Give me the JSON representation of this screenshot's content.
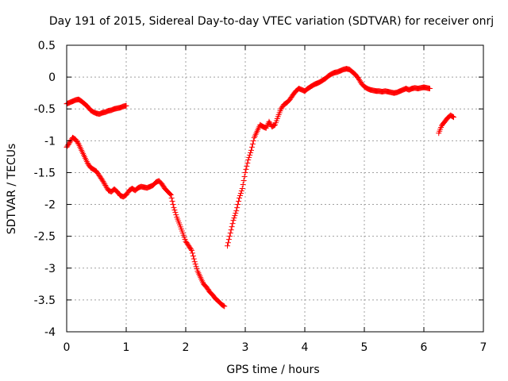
{
  "chart_data": {
    "type": "scatter",
    "title": "Day 191 of 2015, Sidereal Day-to-day VTEC variation (SDTVAR) for receiver onrj",
    "xlabel": "GPS time / hours",
    "ylabel": "SDTVAR / TECUs",
    "xlim": [
      0,
      7
    ],
    "ylim": [
      -4,
      0.5
    ],
    "xticks": [
      "0",
      "1",
      "2",
      "3",
      "4",
      "5",
      "6",
      "7"
    ],
    "yticks": [
      "0.5",
      "0",
      "-0.5",
      "-1",
      "-1.5",
      "-2",
      "-2.5",
      "-3",
      "-3.5",
      "-4"
    ],
    "grid": true,
    "marker": "+",
    "color": "#ff0000",
    "series": [
      {
        "x": [
          0.0,
          0.05,
          0.1,
          0.15,
          0.2,
          0.25,
          0.3,
          0.35,
          0.4,
          0.45,
          0.5,
          0.55,
          0.6,
          0.65,
          0.7,
          0.75,
          0.8,
          0.85,
          0.9,
          0.95,
          1.0
        ],
        "y": [
          -0.42,
          -0.4,
          -0.38,
          -0.36,
          -0.35,
          -0.38,
          -0.42,
          -0.46,
          -0.52,
          -0.55,
          -0.57,
          -0.58,
          -0.56,
          -0.55,
          -0.53,
          -0.52,
          -0.5,
          -0.49,
          -0.48,
          -0.46,
          -0.45
        ]
      },
      {
        "x": [
          0.0,
          0.05,
          0.1,
          0.15,
          0.2,
          0.25,
          0.3,
          0.35,
          0.4,
          0.45,
          0.5,
          0.55,
          0.6,
          0.65,
          0.7,
          0.75,
          0.8,
          0.85,
          0.9,
          0.95,
          1.0,
          1.05,
          1.1,
          1.15,
          1.2,
          1.25,
          1.3,
          1.35,
          1.4,
          1.45,
          1.5,
          1.55,
          1.6,
          1.65,
          1.7,
          1.75,
          1.8,
          1.85,
          1.9,
          1.95,
          2.0,
          2.05,
          2.1,
          2.15,
          2.2,
          2.25,
          2.3,
          2.35,
          2.4,
          2.45,
          2.5,
          2.55,
          2.6,
          2.65
        ],
        "y": [
          -1.1,
          -1.03,
          -0.95,
          -0.98,
          -1.05,
          -1.15,
          -1.25,
          -1.35,
          -1.42,
          -1.45,
          -1.48,
          -1.55,
          -1.62,
          -1.7,
          -1.78,
          -1.8,
          -1.76,
          -1.8,
          -1.86,
          -1.88,
          -1.85,
          -1.78,
          -1.75,
          -1.78,
          -1.74,
          -1.72,
          -1.73,
          -1.74,
          -1.72,
          -1.7,
          -1.65,
          -1.63,
          -1.68,
          -1.75,
          -1.8,
          -1.85,
          -2.05,
          -2.2,
          -2.32,
          -2.45,
          -2.58,
          -2.65,
          -2.72,
          -2.9,
          -3.05,
          -3.15,
          -3.25,
          -3.3,
          -3.37,
          -3.42,
          -3.48,
          -3.52,
          -3.57,
          -3.6
        ]
      },
      {
        "x": [
          2.7,
          2.75,
          2.8,
          2.85,
          2.9,
          2.95,
          3.0,
          3.05,
          3.1,
          3.15,
          3.2,
          3.25,
          3.3,
          3.35,
          3.4,
          3.45,
          3.5,
          3.55,
          3.6,
          3.65,
          3.7,
          3.75,
          3.8,
          3.85,
          3.9,
          3.95,
          4.0,
          4.05,
          4.1,
          4.15,
          4.2,
          4.25,
          4.3,
          4.35,
          4.4,
          4.45,
          4.5,
          4.55,
          4.6,
          4.65,
          4.7,
          4.75,
          4.8,
          4.85,
          4.9,
          4.95,
          5.0,
          5.05,
          5.1,
          5.15,
          5.2,
          5.25,
          5.3,
          5.35,
          5.4,
          5.45,
          5.5,
          5.55,
          5.6,
          5.65,
          5.7,
          5.75,
          5.8,
          5.85,
          5.9,
          5.95,
          6.0,
          6.05,
          6.1
        ],
        "y": [
          -2.65,
          -2.45,
          -2.25,
          -2.1,
          -1.9,
          -1.75,
          -1.5,
          -1.3,
          -1.15,
          -0.95,
          -0.85,
          -0.75,
          -0.78,
          -0.8,
          -0.7,
          -0.78,
          -0.75,
          -0.62,
          -0.5,
          -0.43,
          -0.4,
          -0.35,
          -0.28,
          -0.22,
          -0.18,
          -0.2,
          -0.22,
          -0.18,
          -0.15,
          -0.12,
          -0.1,
          -0.08,
          -0.05,
          -0.02,
          0.02,
          0.05,
          0.07,
          0.08,
          0.1,
          0.12,
          0.13,
          0.12,
          0.08,
          0.04,
          -0.02,
          -0.1,
          -0.15,
          -0.18,
          -0.2,
          -0.21,
          -0.22,
          -0.22,
          -0.23,
          -0.22,
          -0.23,
          -0.24,
          -0.25,
          -0.24,
          -0.22,
          -0.2,
          -0.18,
          -0.2,
          -0.18,
          -0.17,
          -0.18,
          -0.17,
          -0.16,
          -0.17,
          -0.18
        ]
      },
      {
        "x": [
          6.25,
          6.3,
          6.35,
          6.4,
          6.45,
          6.5
        ],
        "y": [
          -0.88,
          -0.76,
          -0.7,
          -0.64,
          -0.6,
          -0.63
        ]
      }
    ]
  }
}
